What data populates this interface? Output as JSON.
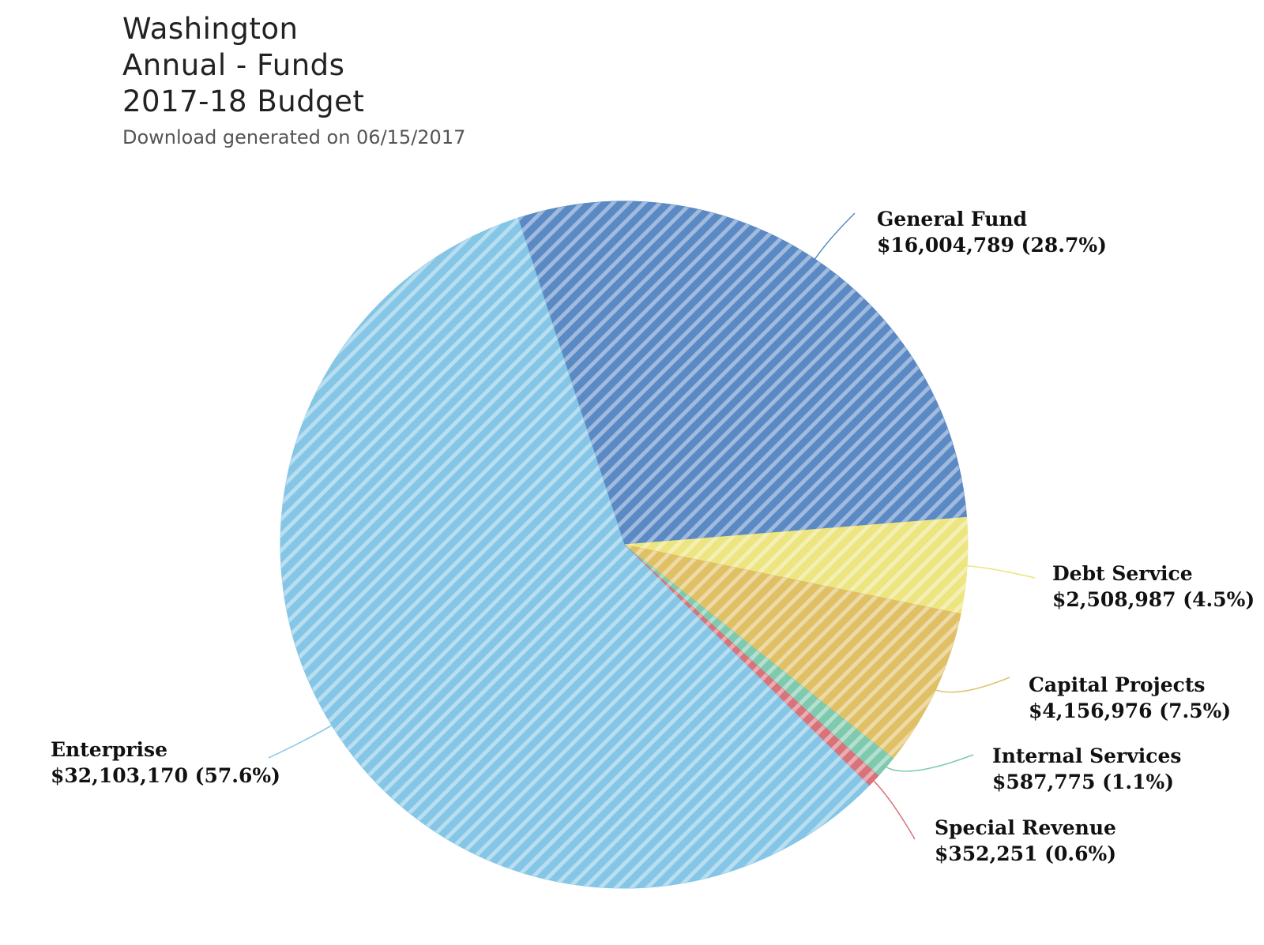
{
  "header": {
    "title_lines": [
      "Washington",
      "Annual - Funds",
      "2017-18 Budget"
    ],
    "subtitle": "Download generated on 06/15/2017"
  },
  "chart_data": {
    "type": "pie",
    "slices": [
      {
        "name": "General Fund",
        "value": 16004789,
        "value_label": "$16,004,789",
        "percent": 28.7,
        "percent_label": "(28.7%)",
        "color": "#5b89c4"
      },
      {
        "name": "Debt Service",
        "value": 2508987,
        "value_label": "$2,508,987",
        "percent": 4.5,
        "percent_label": "(4.5%)",
        "color": "#ece580"
      },
      {
        "name": "Capital Projects",
        "value": 4156976,
        "value_label": "$4,156,976",
        "percent": 7.5,
        "percent_label": "(7.5%)",
        "color": "#e0c065"
      },
      {
        "name": "Internal Services",
        "value": 587775,
        "value_label": "$587,775",
        "percent": 1.1,
        "percent_label": "(1.1%)",
        "color": "#7fcaae"
      },
      {
        "name": "Special Revenue",
        "value": 352251,
        "value_label": "$352,251",
        "percent": 0.6,
        "percent_label": "(0.6%)",
        "color": "#d9727a"
      },
      {
        "name": "Enterprise",
        "value": 32103170,
        "value_label": "$32,103,170",
        "percent": 57.6,
        "percent_label": "(57.6%)",
        "color": "#85c6e6"
      }
    ]
  }
}
